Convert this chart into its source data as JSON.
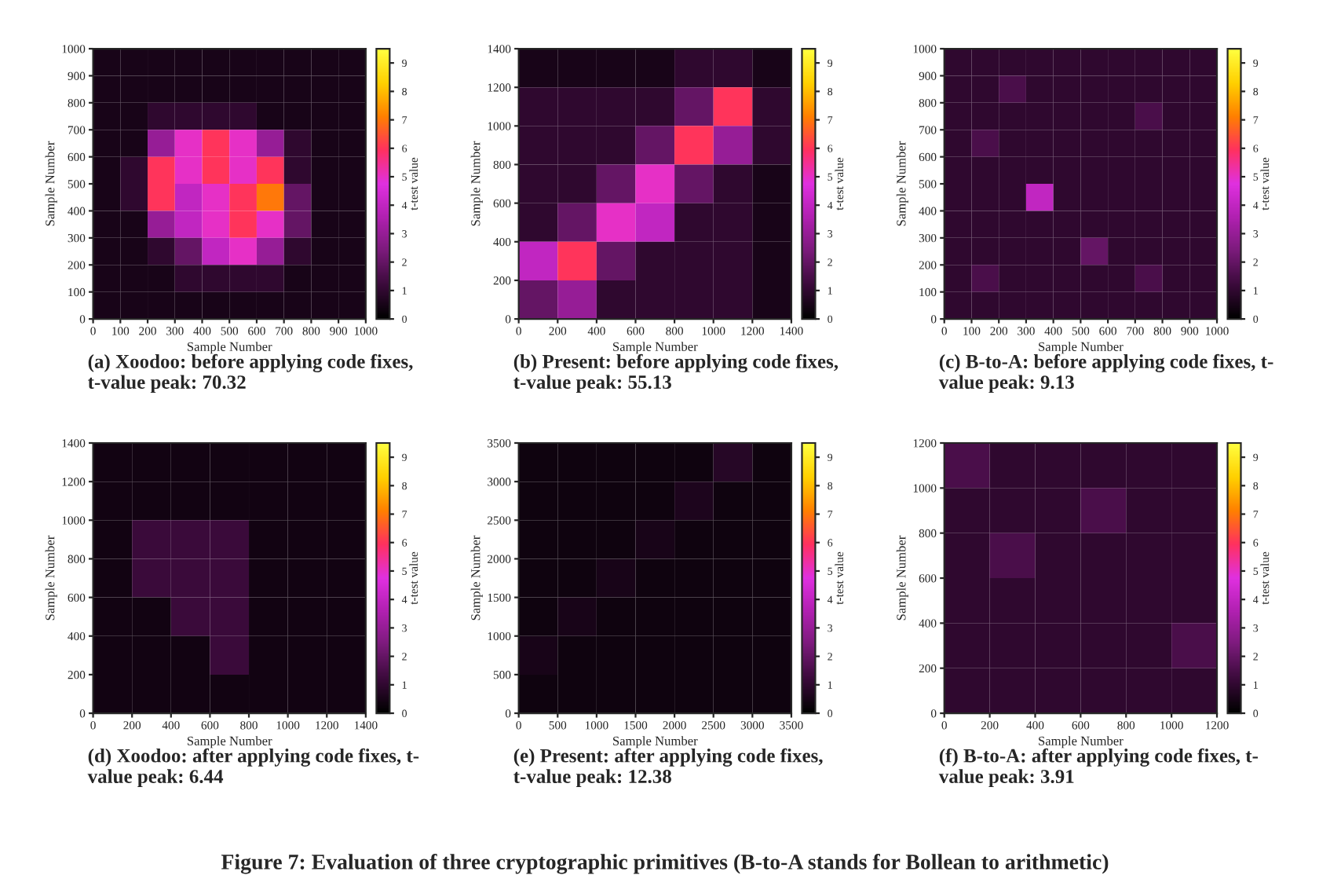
{
  "chart_data": [
    {
      "type": "heatmap",
      "title": "(a) Xoodoo: before applying code fixes,\nt-value peak: 70.32",
      "xlabel": "Sample Number",
      "ylabel": "Sample Number",
      "clabel": "t-test value",
      "xlim": [
        0,
        1000
      ],
      "ylim": [
        0,
        1000
      ],
      "xticks": [
        0,
        100,
        200,
        300,
        400,
        500,
        600,
        700,
        800,
        900,
        1000
      ],
      "yticks": [
        0,
        100,
        200,
        300,
        400,
        500,
        600,
        700,
        800,
        900,
        1000
      ],
      "clim": [
        0,
        9.5
      ],
      "cticks": [
        0,
        1,
        2,
        3,
        4,
        5,
        6,
        7,
        8,
        9
      ],
      "grid": false,
      "cells": [
        [
          0.5,
          0.5,
          0.5,
          0.5,
          0.5,
          0.5,
          0.5,
          0.5,
          0.5,
          0.5
        ],
        [
          0.5,
          0.5,
          0.5,
          0.5,
          0.5,
          0.5,
          0.5,
          0.5,
          0.5,
          0.5
        ],
        [
          0.5,
          0.5,
          1,
          1,
          1,
          1,
          0.5,
          0.5,
          0.5,
          0.5
        ],
        [
          0.5,
          0.5,
          3,
          5,
          6,
          5,
          3,
          1,
          0.5,
          0.5
        ],
        [
          0.5,
          1,
          6,
          5,
          6,
          5,
          6,
          1,
          0.5,
          0.5
        ],
        [
          0.5,
          1,
          6,
          4,
          5,
          6,
          7,
          2,
          0.5,
          0.5
        ],
        [
          0.5,
          0.5,
          3,
          4,
          5,
          6,
          5,
          2,
          0.5,
          0.5
        ],
        [
          0.5,
          0.5,
          1,
          2,
          4,
          5,
          3,
          1,
          0.5,
          0.5
        ],
        [
          0.5,
          0.5,
          0.5,
          1,
          1,
          1,
          1,
          0.5,
          0.5,
          0.5
        ],
        [
          0.5,
          0.5,
          0.5,
          0.5,
          0.5,
          0.5,
          0.5,
          0.5,
          0.5,
          0.5
        ]
      ],
      "annotations": [
        "Figure 7: Evaluation of three cryptographic primitives (B-to-A stands for Bollean to arithmetic)"
      ]
    },
    {
      "type": "heatmap",
      "title": "(b) Present: before applying code fixes,\nt-value peak: 55.13",
      "xlabel": "Sample Number",
      "ylabel": "Sample Number",
      "clabel": "t-test value",
      "xlim": [
        0,
        1400
      ],
      "ylim": [
        0,
        1400
      ],
      "xticks": [
        0,
        200,
        400,
        600,
        800,
        1000,
        1200,
        1400
      ],
      "yticks": [
        0,
        200,
        400,
        600,
        800,
        1000,
        1200,
        1400
      ],
      "clim": [
        0,
        9.5
      ],
      "cticks": [
        0,
        1,
        2,
        3,
        4,
        5,
        6,
        7,
        8,
        9
      ],
      "grid": false,
      "cells": [
        [
          0.5,
          0.5,
          0.5,
          0.5,
          1,
          1,
          0.5
        ],
        [
          1,
          1,
          1,
          1,
          2,
          6,
          1
        ],
        [
          1,
          1,
          1,
          2,
          6,
          3,
          1
        ],
        [
          1,
          1,
          2,
          5,
          2,
          1,
          0.5
        ],
        [
          1,
          2,
          5,
          4,
          1,
          1,
          0.5
        ],
        [
          4,
          6,
          2,
          1,
          1,
          1,
          0.5
        ],
        [
          2,
          3,
          1,
          1,
          1,
          1,
          0.5
        ]
      ]
    },
    {
      "type": "heatmap",
      "title": "(c) B-to-A: before applying code fixes, t-\nvalue peak: 9.13",
      "xlabel": "Sample Number",
      "ylabel": "Sample Number",
      "clabel": "t-test value",
      "xlim": [
        0,
        1000
      ],
      "ylim": [
        0,
        1000
      ],
      "xticks": [
        0,
        100,
        200,
        300,
        400,
        500,
        600,
        700,
        800,
        900,
        1000
      ],
      "yticks": [
        0,
        100,
        200,
        300,
        400,
        500,
        600,
        700,
        800,
        900,
        1000
      ],
      "clim": [
        0,
        9.5
      ],
      "cticks": [
        0,
        1,
        2,
        3,
        4,
        5,
        6,
        7,
        8,
        9
      ],
      "grid": false,
      "cells": [
        [
          1,
          1,
          1,
          1,
          1,
          1,
          1,
          1,
          1,
          1
        ],
        [
          1,
          1,
          1.5,
          1,
          1,
          1,
          1,
          1,
          1,
          1
        ],
        [
          1,
          1,
          1,
          1,
          1,
          1,
          1,
          1.5,
          1,
          1
        ],
        [
          1,
          1.5,
          1,
          1,
          1,
          1,
          1,
          1,
          1,
          1
        ],
        [
          1,
          1,
          1,
          1,
          1,
          1,
          1,
          1,
          1,
          1
        ],
        [
          1,
          1,
          1,
          4,
          1,
          1,
          1,
          1,
          1,
          1
        ],
        [
          1,
          1,
          1,
          1,
          1,
          1,
          1,
          1,
          1,
          1
        ],
        [
          1,
          1,
          1,
          1,
          1,
          2,
          1,
          1,
          1,
          1
        ],
        [
          1,
          1.5,
          1,
          1,
          1,
          1,
          1,
          1.5,
          1,
          1
        ],
        [
          1,
          1,
          1,
          1,
          1,
          1,
          1,
          1,
          1,
          1
        ]
      ]
    },
    {
      "type": "heatmap",
      "title": "(d) Xoodoo: after applying code fixes, t-\nvalue peak: 6.44",
      "xlabel": "Sample Number",
      "ylabel": "Sample Number",
      "clabel": "t-test value",
      "xlim": [
        0,
        1400
      ],
      "ylim": [
        0,
        1400
      ],
      "xticks": [
        0,
        200,
        400,
        600,
        800,
        1000,
        1200,
        1400
      ],
      "yticks": [
        0,
        200,
        400,
        600,
        800,
        1000,
        1200,
        1400
      ],
      "clim": [
        0,
        9.5
      ],
      "cticks": [
        0,
        1,
        2,
        3,
        4,
        5,
        6,
        7,
        8,
        9
      ],
      "grid": false,
      "cells": [
        [
          0.4,
          0.4,
          0.4,
          0.4,
          0.4,
          0.4,
          0.4
        ],
        [
          0.4,
          0.4,
          0.4,
          0.4,
          0.4,
          0.4,
          0.4
        ],
        [
          0.4,
          1.2,
          1.2,
          1.2,
          0.4,
          0.4,
          0.4
        ],
        [
          0.4,
          1.2,
          1.2,
          1.2,
          0.4,
          0.4,
          0.4
        ],
        [
          0.4,
          0.4,
          1.2,
          1.2,
          0.4,
          0.4,
          0.4
        ],
        [
          0.4,
          0.4,
          0.4,
          1.2,
          0.4,
          0.4,
          0.4
        ],
        [
          0.4,
          0.4,
          0.4,
          0.4,
          0.4,
          0.4,
          0.4
        ]
      ]
    },
    {
      "type": "heatmap",
      "title": "(e) Present: after applying code fixes,\nt-value peak: 12.38",
      "xlabel": "Sample Number",
      "ylabel": "Sample Number",
      "clabel": "t-test value",
      "xlim": [
        0,
        3500
      ],
      "ylim": [
        0,
        3500
      ],
      "xticks": [
        0,
        500,
        1000,
        1500,
        2000,
        2500,
        3000,
        3500
      ],
      "yticks": [
        0,
        500,
        1000,
        1500,
        2000,
        2500,
        3000,
        3500
      ],
      "clim": [
        0,
        9.5
      ],
      "cticks": [
        0,
        1,
        2,
        3,
        4,
        5,
        6,
        7,
        8,
        9
      ],
      "grid": false,
      "cells": [
        [
          0.3,
          0.3,
          0.3,
          0.3,
          0.3,
          0.8,
          0.3
        ],
        [
          0.3,
          0.3,
          0.3,
          0.3,
          0.6,
          0.3,
          0.3
        ],
        [
          0.3,
          0.3,
          0.3,
          0.5,
          0.3,
          0.3,
          0.3
        ],
        [
          0.3,
          0.3,
          0.5,
          0.3,
          0.3,
          0.3,
          0.3
        ],
        [
          0.3,
          0.5,
          0.3,
          0.3,
          0.3,
          0.3,
          0.3
        ],
        [
          0.5,
          0.3,
          0.3,
          0.3,
          0.3,
          0.3,
          0.3
        ],
        [
          0.3,
          0.3,
          0.3,
          0.3,
          0.3,
          0.3,
          0.3
        ]
      ]
    },
    {
      "type": "heatmap",
      "title": "(f) B-to-A: after applying code fixes, t-\nvalue peak: 3.91",
      "xlabel": "Sample Number",
      "ylabel": "Sample Number",
      "clabel": "t-test value",
      "xlim": [
        0,
        1200
      ],
      "ylim": [
        0,
        1200
      ],
      "xticks": [
        0,
        200,
        400,
        600,
        800,
        1000,
        1200
      ],
      "yticks": [
        0,
        200,
        400,
        600,
        800,
        1000,
        1200
      ],
      "clim": [
        0,
        9.5
      ],
      "cticks": [
        0,
        1,
        2,
        3,
        4,
        5,
        6,
        7,
        8,
        9
      ],
      "grid": false,
      "cells": [
        [
          1.5,
          1,
          1,
          1,
          1,
          1
        ],
        [
          1,
          1,
          1,
          1.5,
          1,
          1
        ],
        [
          1,
          1.5,
          1,
          1,
          1,
          1
        ],
        [
          1,
          1,
          1,
          1,
          1,
          1
        ],
        [
          1,
          1,
          1,
          1,
          1,
          1.5
        ],
        [
          1,
          1,
          1,
          1,
          1,
          1
        ]
      ]
    }
  ]
}
